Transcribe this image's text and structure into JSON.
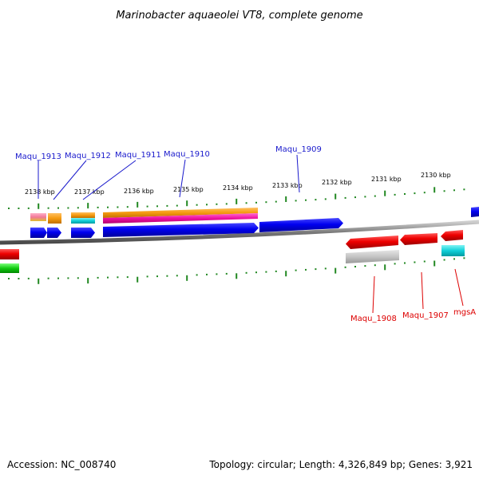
{
  "title": "Marinobacter aquaeolei VT8, complete genome",
  "footer": {
    "accession": "Accession: NC_008740",
    "topology": "Topology: circular; Length: 4,326,849 bp; Genes: 3,921"
  },
  "kbp_labels": [
    "2138 kbp",
    "2137 kbp",
    "2136 kbp",
    "2135 kbp",
    "2134 kbp",
    "2133 kbp",
    "2132 kbp",
    "2131 kbp",
    "2130 kbp"
  ],
  "top_genes": [
    "Maqu_1913",
    "Maqu_1912",
    "Maqu_1911",
    "Maqu_1910",
    "Maqu_1909"
  ],
  "bottom_genes": [
    "Maqu_1908",
    "Maqu_1907",
    "mgsA"
  ],
  "colors": {
    "forward_gene": "#0000ee",
    "reverse_gene": "#ee0000",
    "backbone": "#888888",
    "ticks": "#228822",
    "top_label": "#1a1acc",
    "bottom_label": "#dd0000"
  }
}
